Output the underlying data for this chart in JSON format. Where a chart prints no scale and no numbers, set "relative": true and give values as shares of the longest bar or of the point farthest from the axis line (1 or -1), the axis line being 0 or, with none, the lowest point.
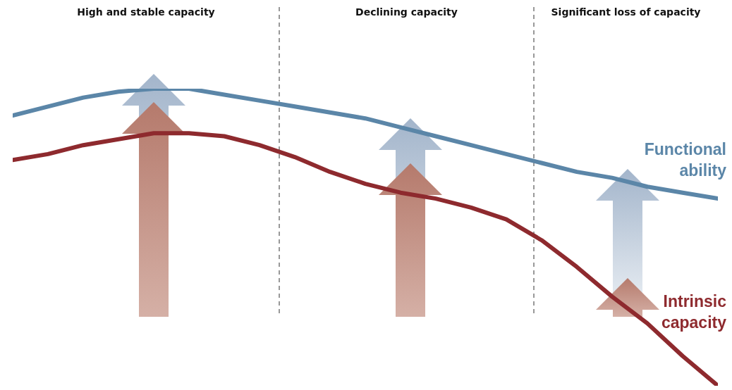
{
  "chart_data": {
    "type": "line",
    "relative": true,
    "categories": [
      null,
      null,
      null,
      null,
      null,
      null,
      null,
      null,
      null,
      null,
      null,
      null,
      null,
      null,
      null,
      null,
      null,
      null,
      null,
      null,
      null
    ],
    "tick_labels": false,
    "legend": "right",
    "marker": "none",
    "line_style": "solid",
    "series": [
      {
        "name": "Functional ability",
        "color": "#5b86a8",
        "values": [
          0.91,
          0.94,
          0.97,
          0.99,
          1,
          1,
          0.98,
          0.96,
          0.94,
          0.92,
          0.9,
          0.87,
          0.84,
          0.81,
          0.78,
          0.75,
          0.72,
          0.7,
          0.67,
          0.65,
          0.63
        ]
      },
      {
        "name": "Intrinsic capacity",
        "color": "#8e2a2e",
        "values": [
          0.76,
          0.78,
          0.81,
          0.83,
          0.85,
          0.85,
          0.84,
          0.81,
          0.77,
          0.72,
          0.68,
          0.65,
          0.63,
          0.6,
          0.56,
          0.49,
          0.4,
          0.3,
          0.21,
          0.1,
          0
        ]
      }
    ],
    "annotations": [
      "High and stable capacity",
      "Declining capacity",
      "Significant loss of capacity"
    ]
  }
}
